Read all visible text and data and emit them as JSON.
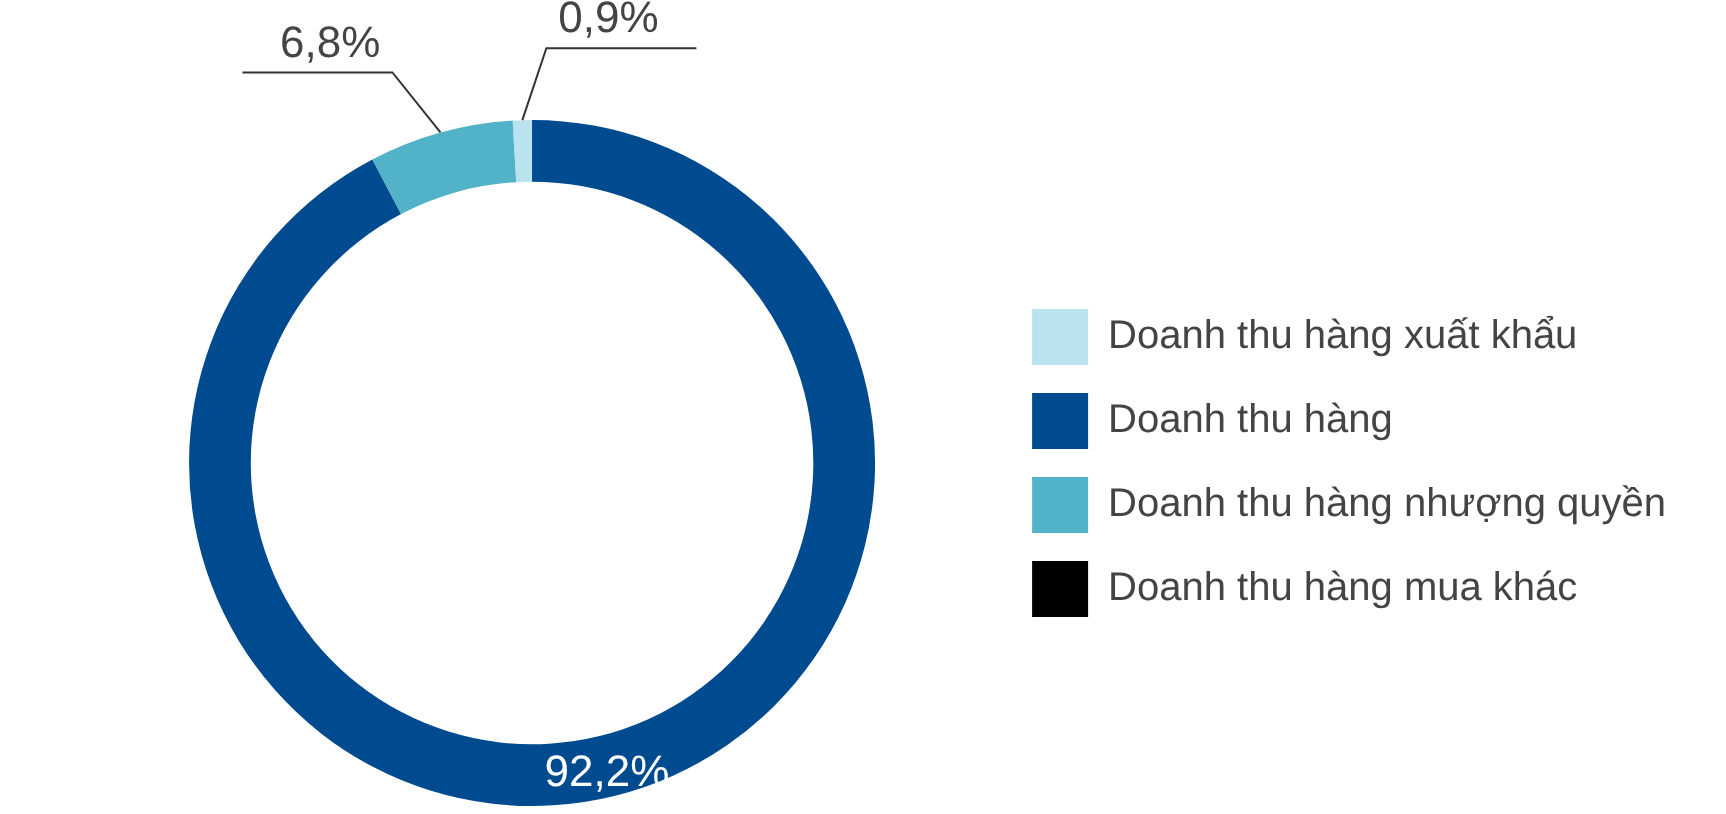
{
  "chart_data": {
    "type": "donut",
    "categories": [
      "Doanh thu hàng xuất khẩu",
      "Doanh thu hàng",
      "Doanh thu hàng nhượng quyền",
      "Doanh thu hàng mua khác"
    ],
    "values": [
      0.9,
      92.2,
      6.8,
      0
    ],
    "colors": [
      "#b9e3ee",
      "#004a8f",
      "#52b3c8",
      "#000000"
    ],
    "value_labels": [
      "0,9%",
      "92,2%",
      "6,8%",
      null
    ],
    "legend": "right"
  }
}
